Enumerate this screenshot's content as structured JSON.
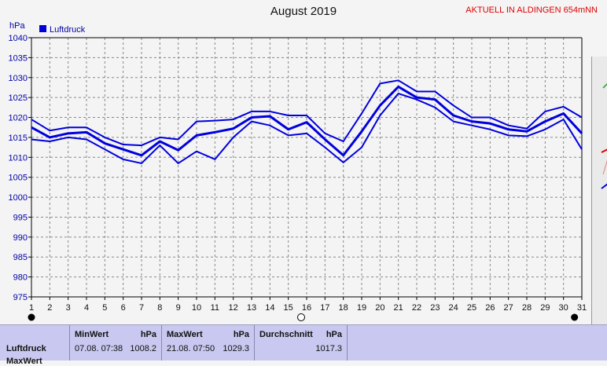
{
  "header": {
    "title": "August 2019",
    "status": "AKTUELL IN ALDINGEN 654mNN"
  },
  "colors": {
    "series": "#0000dd",
    "grid": "#888888",
    "axis": "#000000",
    "status": "#e00000",
    "footer_bg": "#c8c8f0"
  },
  "chart_data": {
    "type": "line",
    "title": "August 2019",
    "ylabel": "hPa",
    "xlabel": "",
    "ylim": [
      975,
      1040
    ],
    "xlim": [
      1,
      31
    ],
    "grid": true,
    "legend_position": "top-left",
    "y_ticks": [
      "1040",
      "1035",
      "1030",
      "1025",
      "1020",
      "1015",
      "1010",
      "1005",
      "1000",
      "995",
      "990",
      "985",
      "980",
      "975"
    ],
    "x_ticks": [
      "1",
      "2",
      "3",
      "4",
      "5",
      "6",
      "7",
      "8",
      "9",
      "10",
      "11",
      "12",
      "13",
      "14",
      "15",
      "16",
      "17",
      "18",
      "19",
      "20",
      "21",
      "22",
      "23",
      "24",
      "25",
      "26",
      "27",
      "28",
      "29",
      "30",
      "31"
    ],
    "x": [
      1,
      2,
      3,
      4,
      5,
      6,
      7,
      8,
      9,
      10,
      11,
      12,
      13,
      14,
      15,
      16,
      17,
      18,
      19,
      20,
      21,
      22,
      23,
      24,
      25,
      26,
      27,
      28,
      29,
      30,
      31
    ],
    "legend": [
      "Luftdruck"
    ],
    "series": [
      {
        "name": "Luftdruck",
        "role": "max",
        "values": [
          1019.5,
          1016.7,
          1017.5,
          1017.5,
          1015,
          1013.2,
          1013,
          1015,
          1014.5,
          1019,
          1019.2,
          1019.5,
          1021.5,
          1021.5,
          1020.5,
          1020.5,
          1016,
          1014,
          1021,
          1028.5,
          1029.3,
          1026.5,
          1026.5,
          1023,
          1020,
          1020,
          1018,
          1017.2,
          1021.5,
          1022.7,
          1020
        ]
      },
      {
        "name": "Luftdruck",
        "role": "average",
        "values": [
          1017.5,
          1015,
          1016,
          1016.3,
          1013.5,
          1012,
          1010.5,
          1014,
          1011.8,
          1015.5,
          1016.3,
          1017.2,
          1020,
          1020.3,
          1017,
          1018.8,
          1014.5,
          1010.5,
          1016.5,
          1023,
          1027.7,
          1025,
          1024.5,
          1020.5,
          1019,
          1018.5,
          1017,
          1016.5,
          1019,
          1021,
          1016
        ]
      },
      {
        "name": "Luftdruck",
        "role": "min",
        "values": [
          1014.5,
          1014,
          1015,
          1014.5,
          1012,
          1009.5,
          1008.5,
          1013,
          1008.5,
          1011.5,
          1009.5,
          1015,
          1019,
          1018,
          1015.5,
          1016,
          1012.5,
          1008.7,
          1012.5,
          1020.5,
          1026,
          1024.5,
          1022.5,
          1019,
          1018,
          1017,
          1015.5,
          1015.3,
          1017,
          1019.5,
          1012
        ]
      }
    ],
    "markers": [
      {
        "x": 1,
        "kind": "full-moon"
      },
      {
        "x": 15.7,
        "kind": "new-moon"
      },
      {
        "x": 30.6,
        "kind": "full-moon"
      }
    ]
  },
  "footer": {
    "row_label": "Luftdruck",
    "row_label_clipped": "MaxWert",
    "min": {
      "header": "MinWert",
      "unit": "hPa",
      "datetime": "07.08.  07:38",
      "value": "1008.2"
    },
    "max": {
      "header": "MaxWert",
      "unit": "hPa",
      "datetime": "21.08.  07:50",
      "value": "1029.3"
    },
    "avg": {
      "header": "Durchschnitt",
      "unit": "hPa",
      "value": "1017.3"
    }
  }
}
